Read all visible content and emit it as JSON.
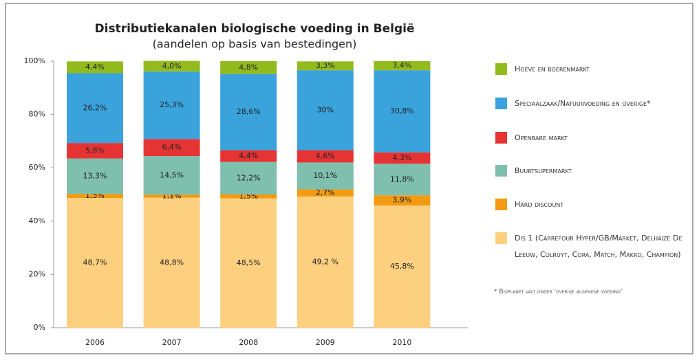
{
  "chart_data": {
    "type": "stacked_bar",
    "title": "Distributiekanalen biologische voeding in België",
    "subtitle": "(aandelen op basis van bestedingen)",
    "categories": [
      "2006",
      "2007",
      "2008",
      "2009",
      "2010"
    ],
    "series": [
      {
        "name": "Dis 1 (Carrefour Hyper/GB/Market, Delhaize De Leeuw, Colruyt, Cora, Match, Makro, Champion)",
        "color": "#fdd080",
        "values": [
          48.7,
          48.8,
          48.5,
          49.2,
          45.8
        ],
        "value_labels": [
          "48,7%",
          "48,8%",
          "48,5%",
          "49,2 %",
          "45,8%"
        ]
      },
      {
        "name": "Hard discount",
        "color": "#f29b12",
        "values": [
          1.5,
          1.1,
          1.5,
          2.7,
          3.9
        ],
        "value_labels": [
          "1,5%",
          "1,1%",
          "1,5%",
          "2,7%",
          "3,9%"
        ]
      },
      {
        "name": "Buurtsupermarkt",
        "color": "#7fbfad",
        "values": [
          13.3,
          14.5,
          12.2,
          10.1,
          11.8
        ],
        "value_labels": [
          "13,3%",
          "14,5%",
          "12,2%",
          "10,1%",
          "11,8%"
        ]
      },
      {
        "name": "Openbare markt",
        "color": "#e63434",
        "values": [
          5.8,
          6.4,
          4.4,
          4.6,
          4.3
        ],
        "value_labels": [
          "5,8%",
          "6,4%",
          "4,4%",
          "4,6%",
          "4,3%"
        ]
      },
      {
        "name": "Speciaalzaak/Natuurvoeding en overige*",
        "color": "#3aa3dc",
        "values": [
          26.2,
          25.3,
          28.6,
          30,
          30.8
        ],
        "value_labels": [
          "26,2%",
          "25,3%",
          "28,6%",
          "30%",
          "30,8%"
        ]
      },
      {
        "name": "Hoeve en boerenmarkt",
        "color": "#93bb1e",
        "values": [
          4.4,
          4.0,
          4.8,
          3.3,
          3.4
        ],
        "value_labels": [
          "4,4%",
          "4,0%",
          "4,8%",
          "3,3%",
          "3,4%"
        ]
      }
    ],
    "ylim": [
      0,
      100
    ],
    "yticks": [
      {
        "value": 0,
        "label": "0%"
      },
      {
        "value": 20,
        "label": "20%"
      },
      {
        "value": 40,
        "label": "40%"
      },
      {
        "value": 60,
        "label": "60%"
      },
      {
        "value": 80,
        "label": "80%"
      },
      {
        "value": 100,
        "label": "100%"
      }
    ],
    "footnote": "* Bioplanet valt onder 'overige algemene voeding'"
  }
}
